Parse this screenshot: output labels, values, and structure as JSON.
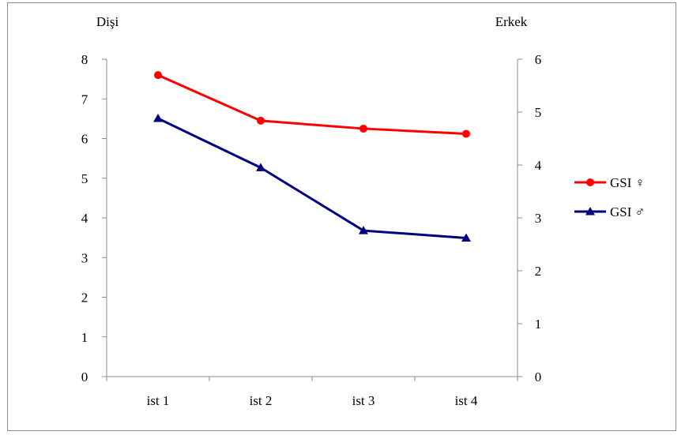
{
  "chart_data": {
    "type": "line",
    "dual_axis": true,
    "categories": [
      "ist 1",
      "ist 2",
      "ist 3",
      "ist 4"
    ],
    "left_axis": {
      "title": "Dişi",
      "range": [
        0,
        8
      ],
      "ticks": [
        "0",
        "1",
        "2",
        "3",
        "4",
        "5",
        "6",
        "7",
        "8"
      ]
    },
    "right_axis": {
      "title": "Erkek",
      "range": [
        0,
        6
      ],
      "ticks": [
        "0",
        "1",
        "2",
        "3",
        "4",
        "5",
        "6"
      ]
    },
    "series": [
      {
        "name": "GSI ♀",
        "axis": "left",
        "values": [
          7.6,
          6.45,
          6.25,
          6.12
        ],
        "color": "#ff0000",
        "marker": "circle"
      },
      {
        "name": "GSI ♂",
        "axis": "right",
        "values": [
          4.88,
          3.95,
          2.76,
          2.62
        ],
        "color": "#000080",
        "marker": "triangle"
      }
    ],
    "grid": false,
    "legend_position": "right"
  }
}
